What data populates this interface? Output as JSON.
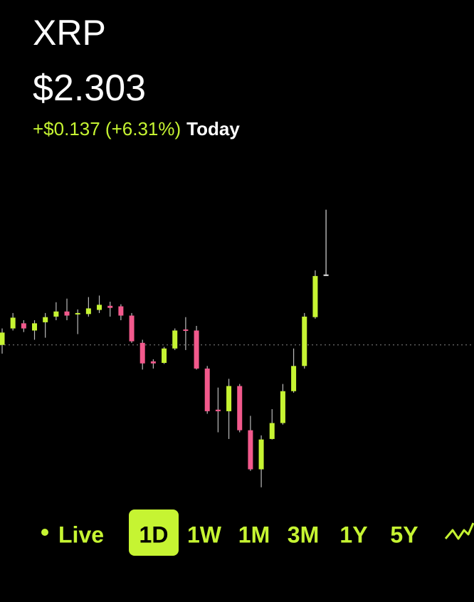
{
  "header": {
    "symbol": "XRP",
    "price": "$2.303",
    "change": "+$0.137 (+6.31%)",
    "period": "Today"
  },
  "chart_data": {
    "type": "candlestick",
    "open": [
      2.166,
      2.198,
      2.208,
      2.194,
      2.21,
      2.221,
      2.231,
      2.226,
      2.226,
      2.234,
      2.242,
      2.241,
      2.223,
      2.17,
      2.134,
      2.131,
      2.159,
      2.196,
      2.194,
      2.12,
      2.04,
      2.037,
      2.086,
      2.0,
      1.924,
      1.983,
      2.014,
      2.076,
      2.125,
      2.22,
      2.3
    ],
    "high": [
      2.198,
      2.228,
      2.214,
      2.214,
      2.228,
      2.249,
      2.256,
      2.235,
      2.259,
      2.262,
      2.25,
      2.245,
      2.228,
      2.176,
      2.138,
      2.162,
      2.198,
      2.22,
      2.203,
      2.125,
      2.083,
      2.1,
      2.09,
      2.028,
      1.99,
      2.041,
      2.09,
      2.159,
      2.228,
      2.311,
      2.429
    ],
    "low": [
      2.149,
      2.194,
      2.191,
      2.176,
      2.18,
      2.214,
      2.214,
      2.187,
      2.221,
      2.228,
      2.221,
      2.214,
      2.17,
      2.118,
      2.12,
      2.129,
      2.156,
      2.156,
      2.118,
      2.032,
      1.996,
      1.983,
      1.996,
      1.921,
      1.889,
      1.982,
      2.011,
      2.073,
      2.12,
      2.217,
      2.3
    ],
    "close": [
      2.19,
      2.219,
      2.198,
      2.208,
      2.22,
      2.231,
      2.223,
      2.228,
      2.237,
      2.244,
      2.238,
      2.223,
      2.173,
      2.13,
      2.13,
      2.159,
      2.194,
      2.194,
      2.12,
      2.037,
      2.037,
      2.086,
      2.0,
      1.924,
      1.982,
      2.014,
      2.076,
      2.125,
      2.221,
      2.3,
      2.303
    ],
    "ylim": [
      1.868,
      2.477
    ],
    "baseline": 2.166,
    "up_color": "#c6f432",
    "down_color": "#f2598c",
    "live_color": "#d8d8d8"
  },
  "tabs": {
    "live": "Live",
    "ranges": [
      "1D",
      "1W",
      "1M",
      "3M",
      "1Y",
      "5Y"
    ],
    "selected": 0
  }
}
